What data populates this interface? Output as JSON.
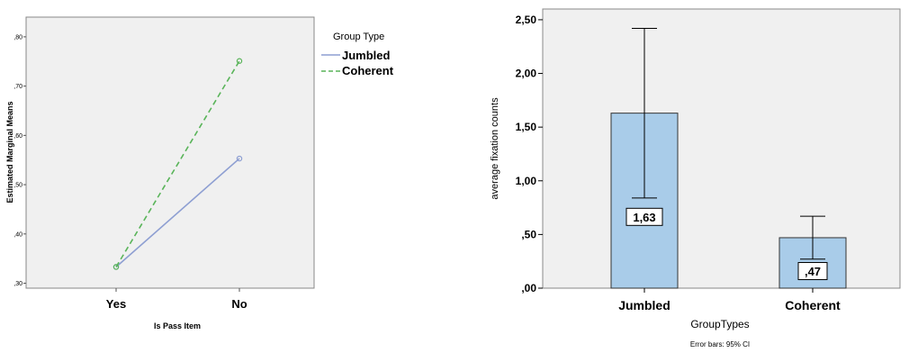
{
  "chart_data": [
    {
      "type": "line",
      "title": "",
      "xlabel": "Is Pass Item",
      "ylabel": "Estimated Marginal Means",
      "categories": [
        "Yes",
        "No"
      ],
      "ylim": [
        0.29,
        0.84
      ],
      "y_ticks": [
        {
          "value": 0.3,
          "label": ",30"
        },
        {
          "value": 0.4,
          "label": ",40"
        },
        {
          "value": 0.5,
          "label": ",50"
        },
        {
          "value": 0.6,
          "label": ",60"
        },
        {
          "value": 0.7,
          "label": ",70"
        },
        {
          "value": 0.8,
          "label": ",80"
        }
      ],
      "legend": {
        "title": "Group Type",
        "placement": "right"
      },
      "series": [
        {
          "name": "Jumbled",
          "values": [
            0.333,
            0.553
          ],
          "color": "#8e9fd2",
          "style": "solid"
        },
        {
          "name": "Coherent",
          "values": [
            0.333,
            0.751
          ],
          "color": "#59b459",
          "style": "dashed"
        }
      ],
      "grid": false,
      "plot_background": "#f0f0f0"
    },
    {
      "type": "bar",
      "title": "",
      "xlabel": "GroupTypes",
      "ylabel": "average fixation counts",
      "categories": [
        "Jumbled",
        "Coherent"
      ],
      "values": [
        1.63,
        0.47
      ],
      "value_labels": [
        "1,63",
        ",47"
      ],
      "error_bars": [
        {
          "low": 0.84,
          "high": 2.42
        },
        {
          "low": 0.27,
          "high": 0.67
        }
      ],
      "ylim": [
        0,
        2.6
      ],
      "y_ticks": [
        {
          "value": 0,
          "label": ",00"
        },
        {
          "value": 0.5,
          "label": ",50"
        },
        {
          "value": 1.0,
          "label": "1,00"
        },
        {
          "value": 1.5,
          "label": "1,50"
        },
        {
          "value": 2.0,
          "label": "2,00"
        },
        {
          "value": 2.5,
          "label": "2,50"
        }
      ],
      "footnote": "Error bars: 95% CI",
      "bar_color": "#a9cce9",
      "grid": false,
      "plot_background": "#f0f0f0"
    }
  ]
}
